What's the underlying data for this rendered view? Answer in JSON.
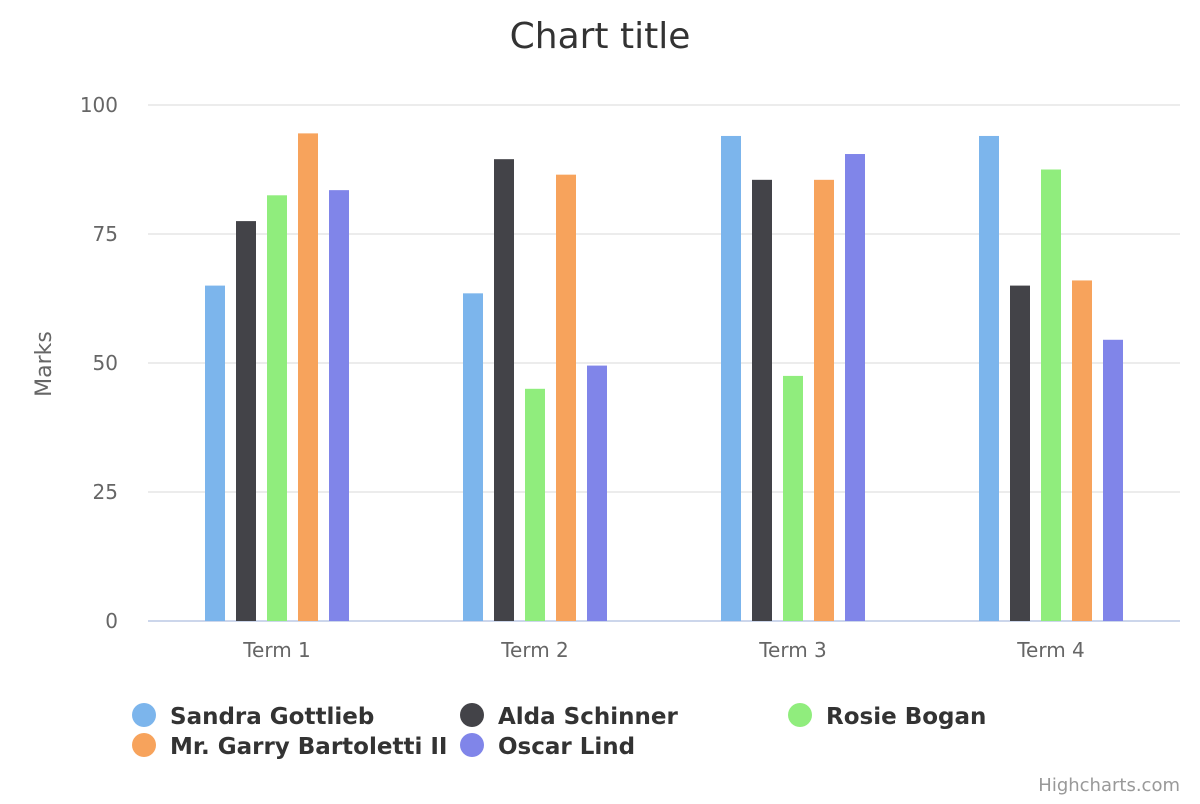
{
  "chart_data": {
    "type": "bar",
    "title": "Chart title",
    "ylabel": "Marks",
    "xlabel": "",
    "ylim": [
      0,
      100
    ],
    "yticks": [
      0,
      25,
      50,
      75,
      100
    ],
    "grid": true,
    "legend_position": "bottom",
    "categories": [
      "Term 1",
      "Term 2",
      "Term 3",
      "Term 4"
    ],
    "series": [
      {
        "name": "Sandra Gottlieb",
        "color": "#7cb5ec",
        "values": [
          65,
          63.5,
          94,
          94
        ]
      },
      {
        "name": "Alda Schinner",
        "color": "#434348",
        "values": [
          77.5,
          89.5,
          85.5,
          65
        ]
      },
      {
        "name": "Rosie Bogan",
        "color": "#90ed7d",
        "values": [
          82.5,
          45,
          47.5,
          87.5
        ]
      },
      {
        "name": "Mr. Garry Bartoletti II",
        "color": "#f7a35c",
        "values": [
          94.5,
          86.5,
          85.5,
          66
        ]
      },
      {
        "name": "Oscar Lind",
        "color": "#8085e9",
        "values": [
          83.5,
          49.5,
          90.5,
          54.5
        ]
      }
    ]
  },
  "credits": "Highcharts.com"
}
